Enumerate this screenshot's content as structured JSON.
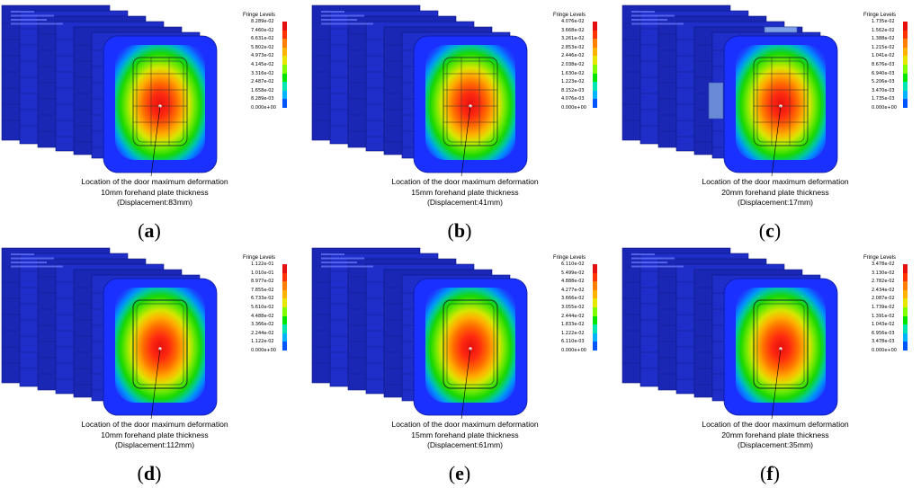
{
  "legend_title": "Fringe Levels",
  "caption_line1": "Location of  the door maximum  deformation",
  "colors": [
    "#e60f0f",
    "#ff3300",
    "#ff8000",
    "#ffb300",
    "#e6e600",
    "#80ff00",
    "#00e600",
    "#00e6b3",
    "#00b3ff",
    "#0055ff",
    "#1a1aff"
  ],
  "panels": [
    {
      "letter": "a",
      "thickness": "10mm forehand plate thickness",
      "displacement": "(Displacement:83mm)",
      "levels": [
        "8.289e-02",
        "7.460e-02",
        "6.631e-02",
        "5.802e-02",
        "4.973e-02",
        "4.145e-02",
        "3.316e-02",
        "2.487e-02",
        "1.658e-02",
        "8.289e-03",
        "0.000e+00"
      ]
    },
    {
      "letter": "b",
      "thickness": "15mm forehand plate thickness",
      "displacement": "(Displacement:41mm)",
      "levels": [
        "4.076e-02",
        "3.668e-02",
        "3.261e-02",
        "2.853e-02",
        "2.446e-02",
        "2.038e-02",
        "1.630e-02",
        "1.223e-02",
        "8.152e-03",
        "4.076e-03",
        "0.000e+00"
      ]
    },
    {
      "letter": "c",
      "thickness": "20mm forehand plate thickness",
      "displacement": "(Displacement:17mm)",
      "levels": [
        "1.735e-02",
        "1.562e-02",
        "1.388e-02",
        "1.215e-02",
        "1.041e-02",
        "8.676e-03",
        "6.940e-03",
        "5.206e-03",
        "3.470e-03",
        "1.735e-03",
        "0.000e+00"
      ]
    },
    {
      "letter": "d",
      "thickness": "10mm forehand plate thickness",
      "displacement": "(Displacement:112mm)",
      "levels": [
        "1.122e-01",
        "1.010e-01",
        "8.977e-02",
        "7.855e-02",
        "6.733e-02",
        "5.610e-02",
        "4.488e-02",
        "3.366e-02",
        "2.244e-02",
        "1.122e-02",
        "0.000e+00"
      ]
    },
    {
      "letter": "e",
      "thickness": "15mm forehand plate thickness",
      "displacement": "(Displacement:61mm)",
      "levels": [
        "6.110e-02",
        "5.499e-02",
        "4.888e-02",
        "4.277e-02",
        "3.666e-02",
        "3.055e-02",
        "2.444e-02",
        "1.833e-02",
        "1.222e-02",
        "6.110e-03",
        "0.000e+00"
      ]
    },
    {
      "letter": "f",
      "thickness": "20mm forehand plate thickness",
      "displacement": "(Displacement:35mm)",
      "levels": [
        "3.478e-02",
        "3.130e-02",
        "2.782e-02",
        "2.434e-02",
        "2.087e-02",
        "1.739e-02",
        "1.391e-02",
        "1.043e-02",
        "6.956e-03",
        "3.478e-03",
        "0.000e+00"
      ]
    }
  ]
}
